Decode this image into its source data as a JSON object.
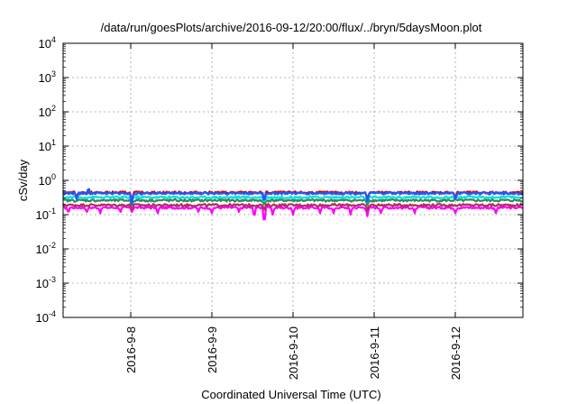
{
  "chart_data": {
    "type": "line",
    "title": "/data/run/goesPlots/archive/2016-09-12/20:00/flux/../bryn/5daysMoon.plot",
    "xlabel": "Coordinated Universal Time (UTC)",
    "ylabel": "cSv/day",
    "yscale": "log",
    "ylim": [
      0.0001,
      10000
    ],
    "y_ticks": [
      {
        "value": 0.0001,
        "base": "10",
        "exp": "-4"
      },
      {
        "value": 0.001,
        "base": "10",
        "exp": "-3"
      },
      {
        "value": 0.01,
        "base": "10",
        "exp": "-2"
      },
      {
        "value": 0.1,
        "base": "10",
        "exp": "-1"
      },
      {
        "value": 1,
        "base": "10",
        "exp": "0"
      },
      {
        "value": 10,
        "base": "10",
        "exp": "1"
      },
      {
        "value": 100,
        "base": "10",
        "exp": "2"
      },
      {
        "value": 1000,
        "base": "10",
        "exp": "3"
      },
      {
        "value": 10000,
        "base": "10",
        "exp": "4"
      }
    ],
    "xlim": [
      "2016-09-07 04:00",
      "2016-09-12 20:00"
    ],
    "x_ticks": [
      {
        "value": "2016-09-08 00:00",
        "label": "2016-9-8"
      },
      {
        "value": "2016-09-09 00:00",
        "label": "2016-9-9"
      },
      {
        "value": "2016-09-10 00:00",
        "label": "2016-9-10"
      },
      {
        "value": "2016-09-11 00:00",
        "label": "2016-9-11"
      },
      {
        "value": "2016-09-12 00:00",
        "label": "2016-9-12"
      }
    ],
    "grid": true,
    "legend": "none",
    "series": [
      {
        "color": "#ff00ff",
        "base": 0.16,
        "dips": [
          [
            "2016-09-07 05:30",
            0.11
          ],
          [
            "2016-09-07 11:00",
            0.12
          ],
          [
            "2016-09-07 15:00",
            0.11
          ],
          [
            "2016-09-07 21:00",
            0.12
          ],
          [
            "2016-09-08 00:20",
            0.12
          ],
          [
            "2016-09-08 08:00",
            0.11
          ],
          [
            "2016-09-08 20:00",
            0.12
          ],
          [
            "2016-09-09 00:00",
            0.11
          ],
          [
            "2016-09-09 08:00",
            0.12
          ],
          [
            "2016-09-09 12:30",
            0.08
          ],
          [
            "2016-09-09 15:30",
            0.05
          ],
          [
            "2016-09-09 18:00",
            0.1
          ],
          [
            "2016-09-10 00:00",
            0.1
          ],
          [
            "2016-09-10 08:00",
            0.11
          ],
          [
            "2016-09-10 12:00",
            0.11
          ],
          [
            "2016-09-10 17:00",
            0.1
          ],
          [
            "2016-09-10 22:00",
            0.09
          ],
          [
            "2016-09-11 02:00",
            0.11
          ],
          [
            "2016-09-11 12:00",
            0.11
          ],
          [
            "2016-09-12 00:00",
            0.11
          ],
          [
            "2016-09-12 12:00",
            0.11
          ]
        ]
      },
      {
        "color": "#b03060",
        "base": 0.19,
        "dips": [
          [
            "2016-09-08 00:20",
            0.14
          ],
          [
            "2016-09-09 15:30",
            0.12
          ],
          [
            "2016-09-10 22:00",
            0.13
          ]
        ]
      },
      {
        "color": "#2e8b57",
        "base": 0.26,
        "dips": [
          [
            "2016-09-08 00:20",
            0.19
          ],
          [
            "2016-09-09 15:30",
            0.18
          ],
          [
            "2016-09-10 22:00",
            0.19
          ]
        ]
      },
      {
        "color": "#00e0e0",
        "base": 0.32,
        "dips": [
          [
            "2016-09-08 00:20",
            0.24
          ],
          [
            "2016-09-09 15:30",
            0.22
          ],
          [
            "2016-09-10 22:00",
            0.23
          ]
        ]
      },
      {
        "color": "#e00000",
        "base": 0.44,
        "dips": [
          [
            "2016-09-07 08:00",
            0.3
          ],
          [
            "2016-09-08 00:20",
            0.22
          ],
          [
            "2016-09-09 15:30",
            0.25
          ],
          [
            "2016-09-10 22:00",
            0.26
          ],
          [
            "2016-09-12 00:00",
            0.3
          ]
        ]
      },
      {
        "color": "#1e5aff",
        "base": 0.42,
        "dips": [
          [
            "2016-09-07 08:00",
            0.28
          ],
          [
            "2016-09-08 00:20",
            0.2
          ],
          [
            "2016-09-09 15:30",
            0.23
          ],
          [
            "2016-09-10 22:00",
            0.24
          ],
          [
            "2016-09-12 00:00",
            0.28
          ]
        ],
        "peaks": [
          [
            "2016-09-07 11:30",
            0.62
          ]
        ]
      }
    ]
  }
}
